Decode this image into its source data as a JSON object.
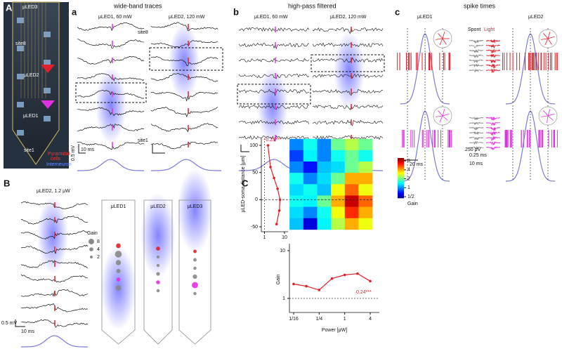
{
  "panel_A": {
    "label": "A",
    "leds": [
      "μLED3",
      "μLED2",
      "μLED1"
    ],
    "sites": [
      "site8",
      "site1"
    ],
    "legend": [
      "Pyramidal",
      "cells",
      "Interneuron"
    ]
  },
  "panel_a": {
    "label": "a",
    "title": "wide-band traces",
    "columns": [
      "μLED1, 60 mW",
      "μLED2, 120 mW"
    ],
    "sites": [
      "site8",
      "site1"
    ],
    "scale": [
      "0.5 mV",
      "10 ms"
    ]
  },
  "panel_b": {
    "label": "b",
    "title": "high-pass filtered",
    "columns": [
      "μLED1, 60 mW",
      "μLED2, 120 mW"
    ]
  },
  "panel_c": {
    "label": "c",
    "title": "spike times",
    "columns": [
      "μLED1",
      "μLED2"
    ],
    "legend": [
      "Spont",
      "Light"
    ],
    "scales": [
      "250 μV",
      "0.25 ms",
      "20 ms",
      "10 ms"
    ]
  },
  "panel_B": {
    "label": "B",
    "title": "μLED2, 1.2 μW",
    "probes": [
      "μLED1",
      "μLED2",
      "μLED3"
    ],
    "gain_legend": {
      "title": "Gain",
      "sizes": [
        8,
        4,
        2
      ]
    },
    "scale": [
      "0.5 mV",
      "10 ms"
    ]
  },
  "panel_C": {
    "label": "C",
    "heatmap": {
      "xlim": [
        0.05,
        4.5
      ],
      "ylim": [
        -55,
        112
      ],
      "gain": [
        [
          1,
          1.5,
          1,
          2,
          2.5,
          2
        ],
        [
          0.8,
          1.4,
          1,
          1.5,
          2,
          1.5
        ],
        [
          1,
          0.7,
          1.2,
          1.3,
          2,
          2.5
        ],
        [
          1.5,
          1,
          1.3,
          2,
          4,
          4
        ],
        [
          1.3,
          1.5,
          1.2,
          3,
          5,
          3
        ],
        [
          1.5,
          1.4,
          2,
          4,
          8,
          5
        ],
        [
          1.3,
          1,
          1.5,
          3,
          6,
          4
        ],
        [
          1.2,
          0.6,
          1.4,
          2.5,
          4,
          3
        ]
      ]
    },
    "y_label": "μLED-soma distance [μm]",
    "yticks": [
      100,
      50,
      0,
      -50
    ],
    "colorbar": {
      "label": "Gain",
      "lim": [
        0.45,
        10
      ],
      "ticks": [
        8,
        4,
        2,
        1,
        {
          "value": 0.5,
          "label": "1/2"
        }
      ]
    },
    "profile": {
      "distance": [
        100,
        60,
        40,
        20,
        0,
        -20,
        -45
      ],
      "gain": [
        1.5,
        2,
        3,
        4.5,
        6,
        5.5,
        4
      ],
      "xlim": [
        0.7,
        15
      ],
      "xticks": [
        1,
        10
      ],
      "annotation": "-0.23***"
    },
    "power_curve": {
      "power": [
        0.0625,
        0.125,
        0.25,
        0.5,
        1,
        2,
        4
      ],
      "gain": [
        2,
        1.8,
        1.5,
        2.6,
        3.1,
        3.3,
        2.3
      ],
      "ylim": [
        0.6,
        14
      ],
      "yticks": [
        10,
        1
      ],
      "xticks": [
        {
          "value": 0.0625,
          "label": "1/16"
        },
        {
          "value": 0.25,
          "label": "1/4"
        },
        1,
        4
      ],
      "xlabel": "Power [μW]",
      "ylabel": "Gain",
      "annotation": "0.24***"
    }
  }
}
